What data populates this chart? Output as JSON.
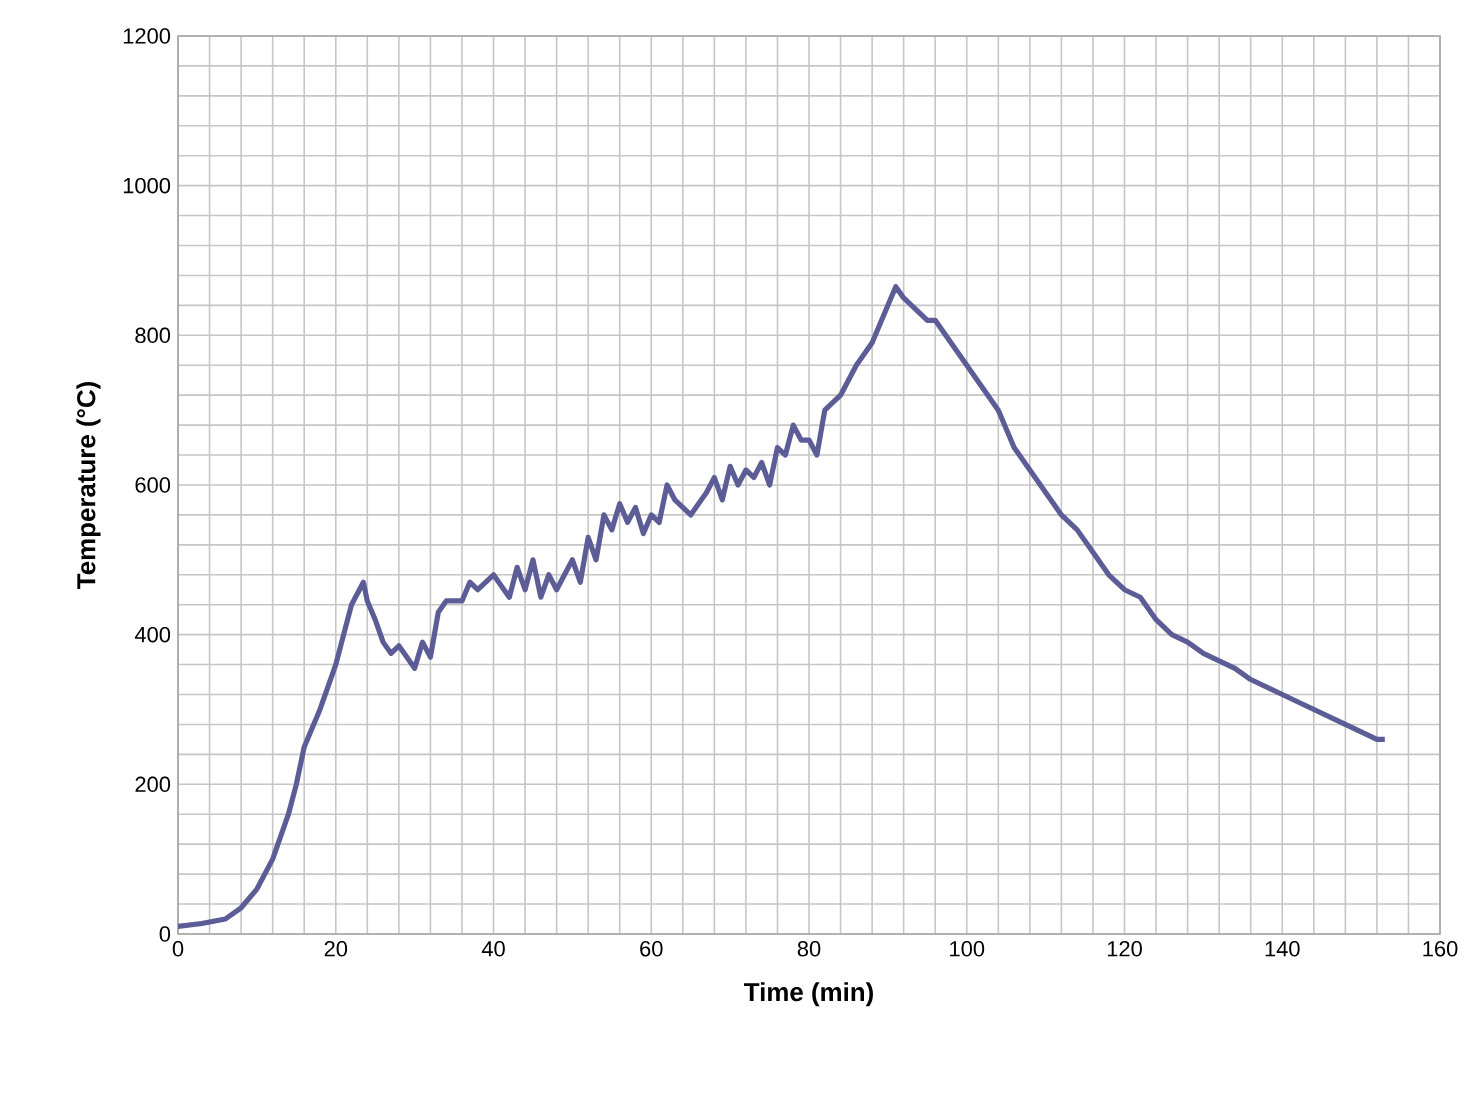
{
  "chart_data": {
    "type": "line",
    "xlabel": "Time (min)",
    "ylabel": "Temperature (°C)",
    "xlim": [
      0,
      160
    ],
    "xticks": [
      0,
      20,
      40,
      60,
      80,
      100,
      120,
      140,
      160
    ],
    "ylim": [
      0,
      1200
    ],
    "yticks": [
      0,
      200,
      400,
      600,
      800,
      1000,
      1200
    ],
    "grid": true,
    "line_style": "solid",
    "series": [
      {
        "color": "#5c5c96",
        "x": [
          0,
          3,
          6,
          8,
          10,
          12,
          14,
          15,
          16,
          18,
          20,
          21,
          22,
          23,
          23.5,
          24,
          25,
          26,
          27,
          28,
          29,
          30,
          31,
          32,
          33,
          34,
          36,
          37,
          38,
          40,
          42,
          43,
          44,
          45,
          46,
          47,
          48,
          50,
          51,
          52,
          53,
          54,
          55,
          56,
          57,
          58,
          59,
          60,
          61,
          62,
          63,
          65,
          67,
          68,
          69,
          70,
          71,
          72,
          73,
          74,
          75,
          76,
          77,
          78,
          79,
          80,
          81,
          82,
          84,
          86,
          88,
          90,
          91,
          92,
          93,
          94,
          95,
          96,
          98,
          100,
          102,
          104,
          106,
          108,
          110,
          112,
          114,
          116,
          118,
          120,
          122,
          124,
          126,
          128,
          130,
          132,
          134,
          136,
          138,
          140,
          142,
          144,
          146,
          148,
          150,
          152,
          153
        ],
        "values": [
          10,
          14,
          20,
          35,
          60,
          100,
          160,
          200,
          250,
          300,
          360,
          400,
          440,
          460,
          470,
          445,
          420,
          390,
          375,
          385,
          370,
          355,
          390,
          370,
          430,
          445,
          445,
          470,
          460,
          480,
          450,
          490,
          460,
          500,
          450,
          480,
          460,
          500,
          470,
          530,
          500,
          560,
          540,
          575,
          550,
          570,
          535,
          560,
          550,
          600,
          580,
          560,
          590,
          610,
          580,
          625,
          600,
          620,
          610,
          630,
          600,
          650,
          640,
          680,
          660,
          660,
          640,
          700,
          720,
          760,
          790,
          840,
          865,
          850,
          840,
          830,
          820,
          820,
          790,
          760,
          730,
          700,
          650,
          620,
          590,
          560,
          540,
          510,
          480,
          460,
          450,
          420,
          400,
          390,
          375,
          365,
          355,
          340,
          330,
          320,
          310,
          300,
          290,
          280,
          270,
          260,
          260
        ]
      }
    ]
  }
}
